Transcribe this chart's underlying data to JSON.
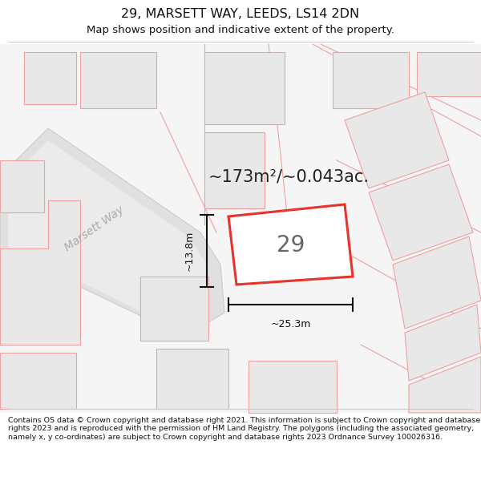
{
  "title": "29, MARSETT WAY, LEEDS, LS14 2DN",
  "subtitle": "Map shows position and indicative extent of the property.",
  "area_text": "~173m²/~0.043ac.",
  "house_number": "29",
  "dim_width": "~25.3m",
  "dim_height": "~13.8m",
  "footer": "Contains OS data © Crown copyright and database right 2021. This information is subject to Crown copyright and database rights 2023 and is reproduced with the permission of HM Land Registry. The polygons (including the associated geometry, namely x, y co-ordinates) are subject to Crown copyright and database rights 2023 Ordnance Survey 100026316.",
  "bg_color": "#ffffff",
  "map_bg": "#f5f5f5",
  "plot_color": "#e8332a",
  "other_plots_edge": "#f0a0a0",
  "other_plots_fill": "#e8e8e8",
  "road_fill": "#e8e8e8",
  "road_edge": "#cccccc",
  "title_color": "#111111",
  "footer_color": "#111111",
  "street_label": "Marsett Way",
  "street_color": "#aaaaaa",
  "dim_color": "#111111",
  "num_color": "#666666"
}
